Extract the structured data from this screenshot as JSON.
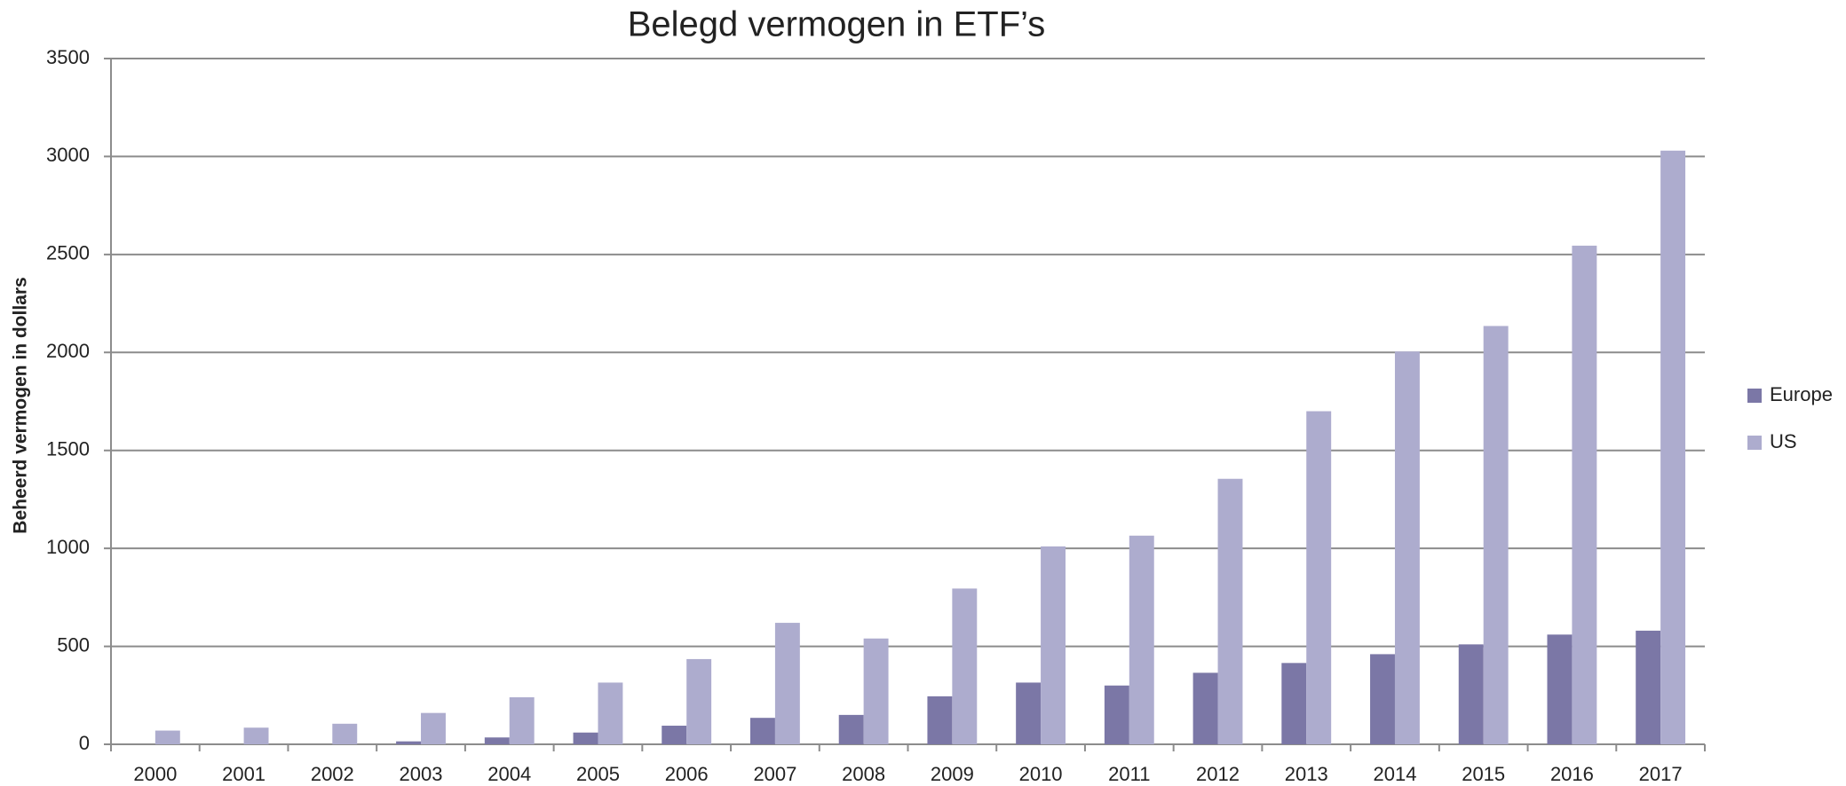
{
  "chart_data": {
    "type": "bar",
    "title": "Belegd vermogen in ETF’s",
    "y_label": "Beheerd vermogen in dollars",
    "categories": [
      "2000",
      "2001",
      "2002",
      "2003",
      "2004",
      "2005",
      "2006",
      "2007",
      "2008",
      "2009",
      "2010",
      "2011",
      "2012",
      "2013",
      "2014",
      "2015",
      "2016",
      "2017"
    ],
    "series": [
      {
        "name": "Europe",
        "color": "#7b77a6",
        "values": [
          0,
          0,
          0,
          15,
          35,
          60,
          95,
          135,
          150,
          245,
          315,
          300,
          365,
          415,
          460,
          510,
          560,
          580
        ]
      },
      {
        "name": "US",
        "color": "#adacce",
        "values": [
          70,
          85,
          105,
          160,
          240,
          315,
          435,
          620,
          540,
          795,
          1010,
          1065,
          1355,
          1700,
          2005,
          2135,
          2545,
          3030
        ]
      }
    ],
    "ylim": [
      0,
      3500
    ],
    "yticks": [
      0,
      500,
      1000,
      1500,
      2000,
      2500,
      3000,
      3500
    ],
    "grid": true,
    "legend": "right"
  }
}
